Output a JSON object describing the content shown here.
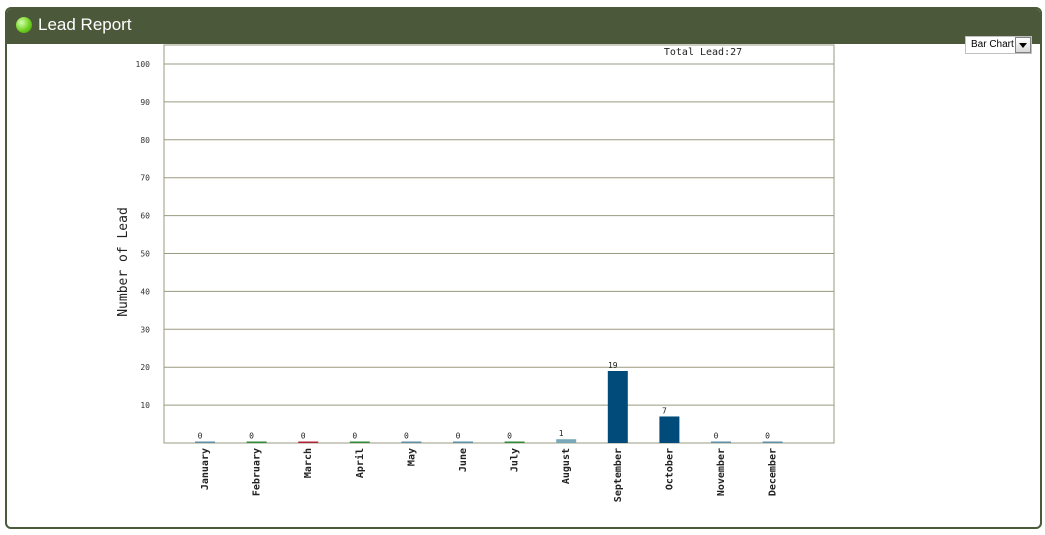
{
  "header": {
    "title": "Lead Report",
    "icon": "green-orb-icon",
    "background": "#4b583a"
  },
  "chart_selector": {
    "selected": "Bar Chart"
  },
  "chart_data": {
    "type": "bar",
    "title": "Total Lead:27",
    "ylabel": "Number of Lead",
    "xlabel": "",
    "ylim": [
      0,
      100
    ],
    "yticks": [
      10,
      20,
      30,
      40,
      50,
      60,
      70,
      80,
      90,
      100
    ],
    "grid": true,
    "categories": [
      "January",
      "February",
      "March",
      "April",
      "May",
      "June",
      "July",
      "August",
      "September",
      "October",
      "November",
      "December"
    ],
    "values": [
      0,
      0,
      0,
      0,
      0,
      0,
      0,
      1,
      19,
      7,
      0,
      0
    ],
    "data_labels": [
      "0",
      "0",
      "0",
      "0",
      "0",
      "0",
      "0",
      "1",
      "19",
      "7",
      "0",
      "0"
    ],
    "colors": [
      "#5d8fa6",
      "#2f8a3a",
      "#b0243a",
      "#2f8a3a",
      "#5d8fa6",
      "#5d8fa6",
      "#2f8a3a",
      "#79a9b8",
      "#004b7a",
      "#004b7a",
      "#5d8fa6",
      "#5d8fa6"
    ]
  }
}
